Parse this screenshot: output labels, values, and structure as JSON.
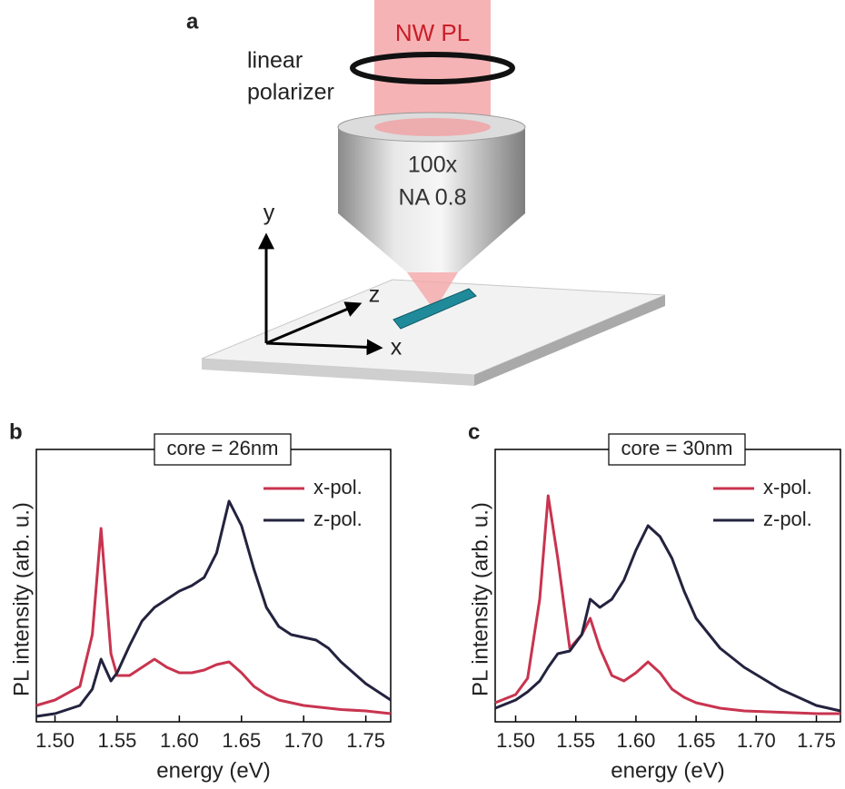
{
  "panel_a": {
    "label": "a",
    "beam_label": "NW PL",
    "polarizer_label": [
      "linear",
      "polarizer"
    ],
    "objective_label": [
      "100x",
      "NA 0.8"
    ],
    "axes": [
      "y",
      "z",
      "x"
    ]
  },
  "chart_data": [
    {
      "type": "line",
      "panel_label": "b",
      "title": "core = 26nm",
      "xlabel": "energy (eV)",
      "ylabel": "PL intensity (arb. u.)",
      "xlim": [
        1.485,
        1.77
      ],
      "ylim": [
        0,
        1
      ],
      "legend": "upper right",
      "xticks": [
        {
          "value": 1.5,
          "label": "1.50"
        },
        {
          "value": 1.55,
          "label": "1.55"
        },
        {
          "value": 1.6,
          "label": "1.60"
        },
        {
          "value": 1.65,
          "label": "1.65"
        },
        {
          "value": 1.7,
          "label": "1.70"
        },
        {
          "value": 1.75,
          "label": "1.75"
        }
      ],
      "x": [
        1.485,
        1.5,
        1.52,
        1.53,
        1.537,
        1.545,
        1.55,
        1.56,
        1.57,
        1.58,
        1.59,
        1.6,
        1.61,
        1.62,
        1.63,
        1.64,
        1.65,
        1.66,
        1.67,
        1.68,
        1.69,
        1.7,
        1.71,
        1.72,
        1.73,
        1.75,
        1.77
      ],
      "series": [
        {
          "name": "x-pol.",
          "color": "#c8344f",
          "values": [
            0.06,
            0.08,
            0.13,
            0.32,
            0.71,
            0.25,
            0.17,
            0.17,
            0.2,
            0.23,
            0.2,
            0.18,
            0.18,
            0.19,
            0.21,
            0.22,
            0.18,
            0.13,
            0.1,
            0.08,
            0.07,
            0.06,
            0.055,
            0.05,
            0.045,
            0.04,
            0.03
          ]
        },
        {
          "name": "z-pol.",
          "color": "#23233f",
          "values": [
            0.02,
            0.03,
            0.06,
            0.12,
            0.23,
            0.15,
            0.18,
            0.28,
            0.37,
            0.42,
            0.45,
            0.48,
            0.5,
            0.53,
            0.62,
            0.81,
            0.72,
            0.56,
            0.42,
            0.35,
            0.32,
            0.31,
            0.3,
            0.27,
            0.22,
            0.14,
            0.08
          ]
        }
      ]
    },
    {
      "type": "line",
      "panel_label": "c",
      "title": "core = 30nm",
      "xlabel": "energy (eV)",
      "ylabel": "PL intensity (arb. u.)",
      "xlim": [
        1.483,
        1.77
      ],
      "ylim": [
        0,
        1
      ],
      "legend": "upper right",
      "xticks": [
        {
          "value": 1.5,
          "label": "1.50"
        },
        {
          "value": 1.55,
          "label": "1.55"
        },
        {
          "value": 1.6,
          "label": "1.60"
        },
        {
          "value": 1.65,
          "label": "1.65"
        },
        {
          "value": 1.7,
          "label": "1.70"
        },
        {
          "value": 1.75,
          "label": "1.75"
        }
      ],
      "x": [
        1.483,
        1.5,
        1.51,
        1.52,
        1.527,
        1.535,
        1.545,
        1.555,
        1.562,
        1.57,
        1.58,
        1.59,
        1.6,
        1.61,
        1.62,
        1.63,
        1.64,
        1.65,
        1.67,
        1.69,
        1.72,
        1.75,
        1.77
      ],
      "series": [
        {
          "name": "x-pol.",
          "color": "#c8344f",
          "values": [
            0.07,
            0.1,
            0.16,
            0.45,
            0.83,
            0.6,
            0.27,
            0.32,
            0.38,
            0.27,
            0.17,
            0.15,
            0.18,
            0.22,
            0.18,
            0.12,
            0.09,
            0.07,
            0.05,
            0.04,
            0.035,
            0.03,
            0.03
          ]
        },
        {
          "name": "z-pol.",
          "color": "#23233f",
          "values": [
            0.05,
            0.08,
            0.11,
            0.15,
            0.2,
            0.25,
            0.26,
            0.32,
            0.45,
            0.42,
            0.45,
            0.52,
            0.63,
            0.72,
            0.68,
            0.6,
            0.48,
            0.38,
            0.27,
            0.2,
            0.12,
            0.06,
            0.04
          ]
        }
      ]
    }
  ]
}
